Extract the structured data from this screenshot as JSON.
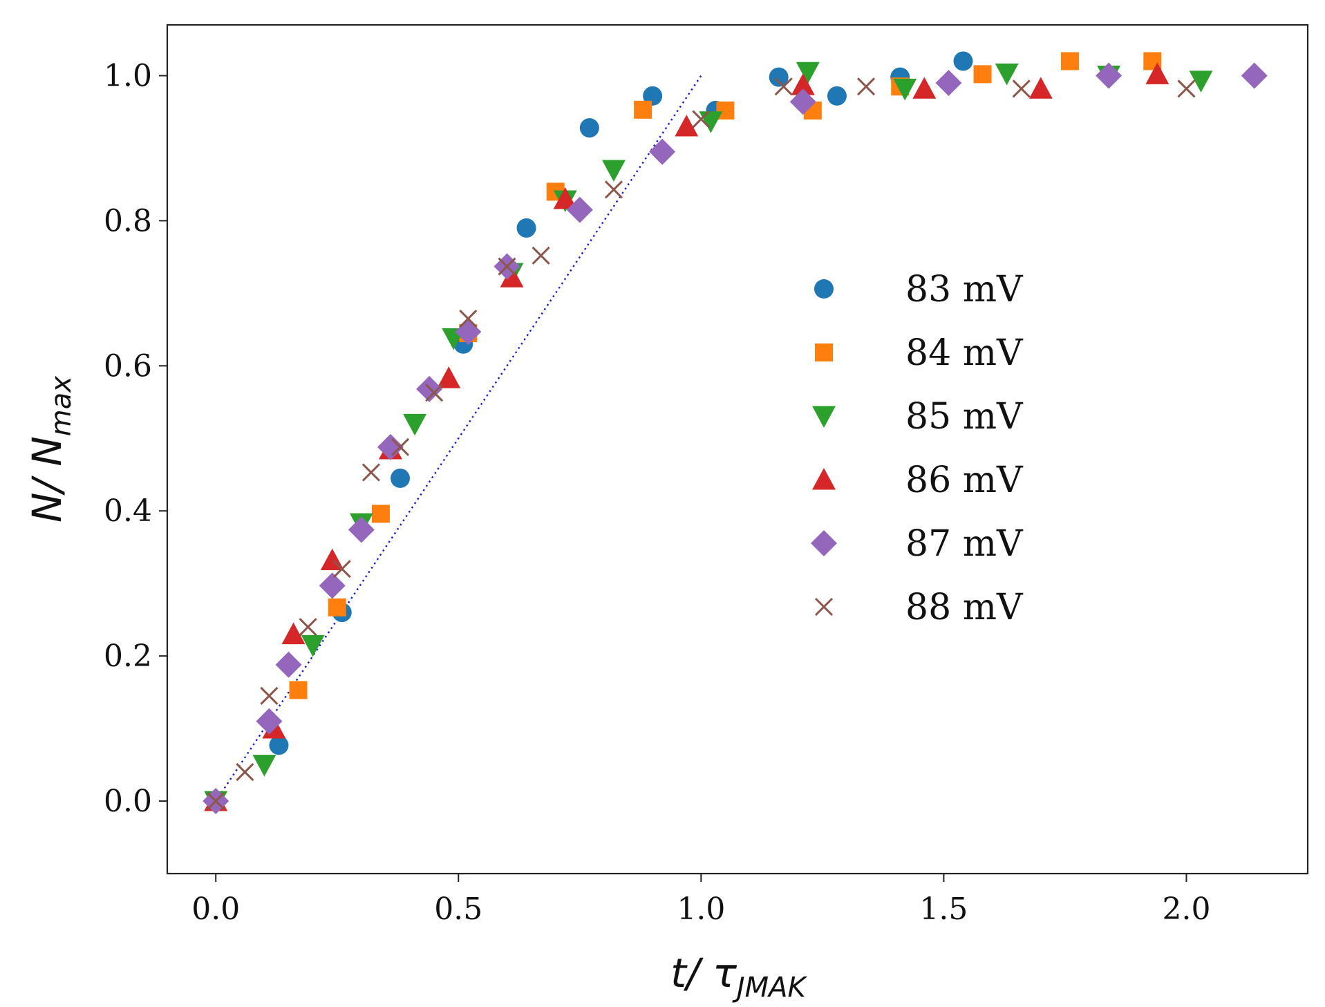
{
  "chart_data": {
    "type": "scatter",
    "title": "",
    "xlabel": {
      "main": "t/ τ",
      "sub": "JMAK"
    },
    "ylabel": {
      "main": "N/ N",
      "sub": "max"
    },
    "xlim": [
      -0.1,
      2.25
    ],
    "ylim": [
      -0.1,
      1.07
    ],
    "xticks": [
      "0.0",
      "0.5",
      "1.0",
      "1.5",
      "2.0"
    ],
    "yticks": [
      "0.0",
      "0.2",
      "0.4",
      "0.6",
      "0.8",
      "1.0"
    ],
    "grid": false,
    "legend_position": "center-right",
    "series": [
      {
        "name": "83 mV",
        "marker": "circle",
        "color": "#1f77b4",
        "x": [
          0,
          0.13,
          0.26,
          0.38,
          0.51,
          0.64,
          0.77,
          0.9,
          1.03,
          1.16,
          1.28,
          1.41,
          1.54
        ],
        "y": [
          0,
          0.077,
          0.26,
          0.445,
          0.63,
          0.79,
          0.928,
          0.972,
          0.952,
          0.998,
          0.972,
          0.998,
          1.02
        ]
      },
      {
        "name": "84 mV",
        "marker": "square",
        "color": "#ff7f0e",
        "x": [
          0,
          0.17,
          0.25,
          0.34,
          0.52,
          0.7,
          0.88,
          1.05,
          1.23,
          1.41,
          1.58,
          1.76,
          1.93
        ],
        "y": [
          0,
          0.153,
          0.267,
          0.396,
          0.645,
          0.84,
          0.953,
          0.952,
          0.952,
          0.985,
          1.002,
          1.02,
          1.02
        ]
      },
      {
        "name": "85 mV",
        "marker": "triangle-down",
        "color": "#2ca02c",
        "x": [
          0,
          0.1,
          0.2,
          0.3,
          0.41,
          0.49,
          0.61,
          0.72,
          0.82,
          1.02,
          1.22,
          1.42,
          1.63,
          1.84,
          2.03
        ],
        "y": [
          0,
          0.05,
          0.215,
          0.383,
          0.52,
          0.638,
          0.728,
          0.828,
          0.87,
          0.937,
          1.005,
          0.982,
          1.003,
          1.0,
          0.993
        ]
      },
      {
        "name": "86 mV",
        "marker": "triangle-up",
        "color": "#d62728",
        "x": [
          0,
          0.12,
          0.16,
          0.24,
          0.36,
          0.48,
          0.61,
          0.72,
          0.97,
          1.21,
          1.46,
          1.7,
          1.94
        ],
        "y": [
          0,
          0.1,
          0.23,
          0.332,
          0.485,
          0.583,
          0.722,
          0.83,
          0.93,
          0.987,
          0.982,
          0.982,
          1.002
        ]
      },
      {
        "name": "87 mV",
        "marker": "diamond",
        "color": "#9467bd",
        "x": [
          0,
          0.11,
          0.15,
          0.24,
          0.3,
          0.36,
          0.44,
          0.52,
          0.6,
          0.75,
          0.92,
          1.21,
          1.51,
          1.84,
          2.14
        ],
        "y": [
          0,
          0.11,
          0.188,
          0.297,
          0.374,
          0.488,
          0.568,
          0.647,
          0.737,
          0.815,
          0.895,
          0.964,
          0.99,
          1.0,
          1.0
        ]
      },
      {
        "name": "88 mV",
        "marker": "x",
        "color": "#8c564b",
        "x": [
          0,
          0.06,
          0.11,
          0.19,
          0.26,
          0.32,
          0.38,
          0.45,
          0.52,
          0.6,
          0.67,
          0.82,
          1.0,
          1.17,
          1.34,
          1.66,
          2.0
        ],
        "y": [
          0,
          0.04,
          0.145,
          0.24,
          0.32,
          0.453,
          0.488,
          0.563,
          0.665,
          0.737,
          0.752,
          0.843,
          0.94,
          0.985,
          0.985,
          0.982,
          0.982
        ]
      }
    ],
    "reference_line": {
      "style": "dotted",
      "color": "#1a1acc",
      "x": [
        0,
        1.0
      ],
      "y": [
        0,
        1.0
      ]
    }
  }
}
